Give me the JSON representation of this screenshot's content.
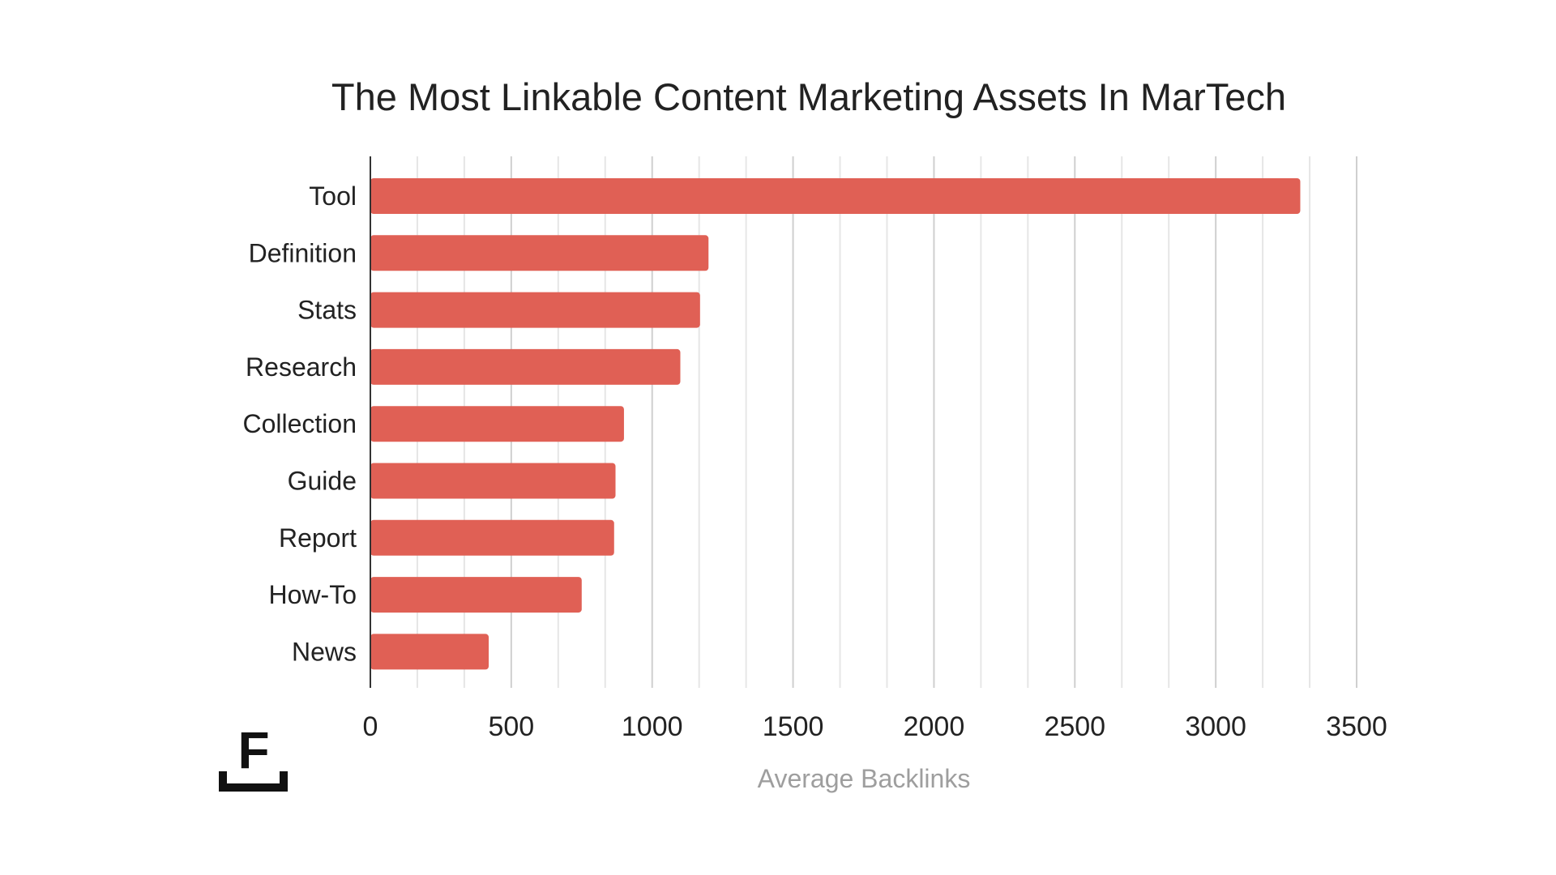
{
  "chart_data": {
    "type": "bar",
    "orientation": "horizontal",
    "title": "The Most Linkable Content Marketing Assets In MarTech",
    "categories": [
      "Tool",
      "Definition",
      "Stats",
      "Research",
      "Collection",
      "Guide",
      "Report",
      "How-To",
      "News"
    ],
    "values": [
      3300,
      1200,
      1170,
      1100,
      900,
      870,
      865,
      750,
      420
    ],
    "xlabel": "Average Backlinks",
    "ylabel": "",
    "xlim": [
      0,
      3500
    ],
    "xticks": [
      "0",
      "500",
      "1000",
      "1500",
      "2000",
      "2500",
      "3000",
      "3500"
    ],
    "grid": true,
    "legend": "none",
    "bar_color": "#e06055"
  }
}
